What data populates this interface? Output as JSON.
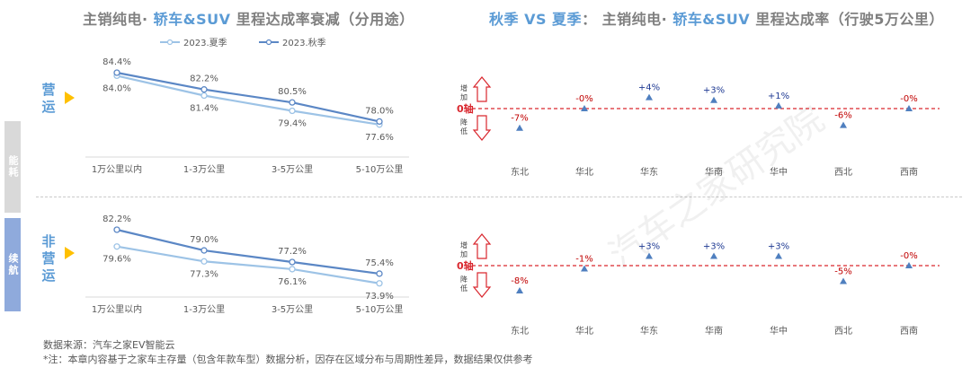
{
  "titles": {
    "left": {
      "part1": "主销纯电· ",
      "part2": "轿车&SUV",
      "part3": " 里程达成率衰减（分用途）"
    },
    "right": {
      "part1": "秋季 VS 夏季",
      "part2": "： 主销纯电· ",
      "part3": "轿车&SUV",
      "part4": " 里程达成率（行驶5万公里）"
    }
  },
  "side_tabs": {
    "top": "能耗",
    "bottom": "续航"
  },
  "segments": {
    "top": "营运",
    "bottom": "非营运"
  },
  "axis_markers": {
    "zero": "0轴",
    "up": "增加",
    "down": "降低"
  },
  "watermark": "汽车之家研究院",
  "footer": {
    "source": "数据来源：汽车之家EV智能云",
    "note": "*注：本章内容基于之家车主存量（包含年款车型）数据分析，因存在区域分布与周期性差异，数据结果仅供参考"
  },
  "colors": {
    "summer": "#9dc3e6",
    "autumn": "#5b87c5",
    "positive": "#1f3a93",
    "negative": "#c00000",
    "marker": "#4f7fbf",
    "zero_line": "#d9272e",
    "segment": "#ffc000"
  },
  "chart_data": [
    {
      "type": "line",
      "id": "operating-decay",
      "categories": [
        "1万公里以内",
        "1-3万公里",
        "3-5万公里",
        "5-10万公里"
      ],
      "series": [
        {
          "name": "2023.夏季",
          "values": [
            84.0,
            81.4,
            79.4,
            77.6
          ]
        },
        {
          "name": "2023.秋季",
          "values": [
            84.4,
            82.2,
            80.5,
            78.0
          ]
        }
      ],
      "labels": {
        "2023.夏季": [
          "84.0%",
          "81.4%",
          "79.4%",
          "77.6%"
        ],
        "2023.秋季": [
          "84.4%",
          "82.2%",
          "80.5%",
          "78.0%"
        ]
      },
      "legend": "top-center"
    },
    {
      "type": "line",
      "id": "nonoperating-decay",
      "categories": [
        "1万公里以内",
        "1-3万公里",
        "3-5万公里",
        "5-10万公里"
      ],
      "series": [
        {
          "name": "2023.夏季",
          "values": [
            79.6,
            77.3,
            76.1,
            73.9
          ]
        },
        {
          "name": "2023.秋季",
          "values": [
            82.2,
            79.0,
            77.2,
            75.4
          ]
        }
      ],
      "labels": {
        "2023.夏季": [
          "79.6%",
          "77.3%",
          "76.1%",
          "73.9%"
        ],
        "2023.秋季": [
          "82.2%",
          "79.0%",
          "77.2%",
          "75.4%"
        ]
      }
    },
    {
      "type": "scatter",
      "id": "operating-region-diff",
      "categories": [
        "东北",
        "华北",
        "华东",
        "华南",
        "华中",
        "西北",
        "西南"
      ],
      "values": [
        -7,
        0,
        4,
        3,
        1,
        -6,
        0
      ],
      "labels": [
        "-7%",
        "-0%",
        "+4%",
        "+3%",
        "+1%",
        "-6%",
        "-0%"
      ]
    },
    {
      "type": "scatter",
      "id": "nonoperating-region-diff",
      "categories": [
        "东北",
        "华北",
        "华东",
        "华南",
        "华中",
        "西北",
        "西南"
      ],
      "values": [
        -8,
        -1,
        3,
        3,
        3,
        -5,
        0
      ],
      "labels": [
        "-8%",
        "-1%",
        "+3%",
        "+3%",
        "+3%",
        "-5%",
        "-0%"
      ]
    }
  ]
}
